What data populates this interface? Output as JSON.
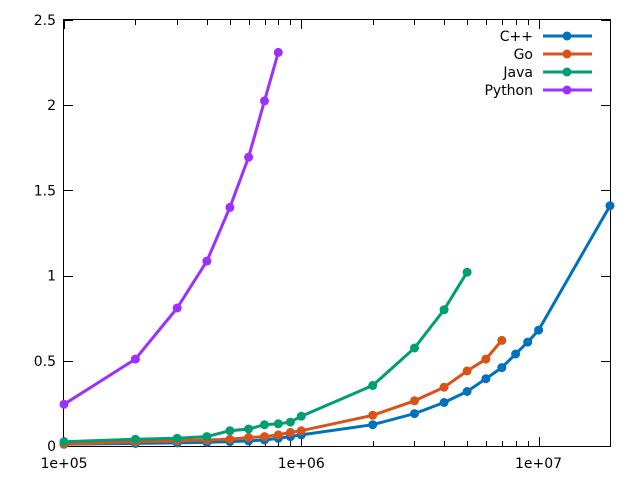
{
  "chart_data": {
    "type": "line",
    "x_scale": "log",
    "xlim": [
      100000,
      20000000
    ],
    "ylim": [
      0,
      2.5
    ],
    "grid": false,
    "legend_position": "top-right",
    "x_ticks": [
      {
        "value": 100000,
        "label": "1e+05"
      },
      {
        "value": 1000000,
        "label": "1e+06"
      },
      {
        "value": 10000000,
        "label": "1e+07"
      }
    ],
    "y_ticks": [
      {
        "value": 0,
        "label": "0"
      },
      {
        "value": 0.5,
        "label": "0.5"
      },
      {
        "value": 1,
        "label": "1"
      },
      {
        "value": 1.5,
        "label": "1.5"
      },
      {
        "value": 2,
        "label": "2"
      },
      {
        "value": 2.5,
        "label": "2.5"
      }
    ],
    "series": [
      {
        "name": "C++",
        "color": "#0072bd",
        "points": [
          [
            100000,
            0.01
          ],
          [
            200000,
            0.015
          ],
          [
            300000,
            0.018
          ],
          [
            400000,
            0.022
          ],
          [
            500000,
            0.026
          ],
          [
            600000,
            0.03
          ],
          [
            700000,
            0.035
          ],
          [
            800000,
            0.045
          ],
          [
            900000,
            0.055
          ],
          [
            1000000,
            0.065
          ],
          [
            2000000,
            0.125
          ],
          [
            3000000,
            0.19
          ],
          [
            4000000,
            0.255
          ],
          [
            5000000,
            0.32
          ],
          [
            6000000,
            0.395
          ],
          [
            7000000,
            0.46
          ],
          [
            8000000,
            0.54
          ],
          [
            9000000,
            0.61
          ],
          [
            10000000,
            0.68
          ],
          [
            20000000,
            1.41
          ]
        ]
      },
      {
        "name": "Go",
        "color": "#d95319",
        "points": [
          [
            100000,
            0.01
          ],
          [
            200000,
            0.025
          ],
          [
            300000,
            0.03
          ],
          [
            400000,
            0.035
          ],
          [
            500000,
            0.04
          ],
          [
            600000,
            0.05
          ],
          [
            700000,
            0.055
          ],
          [
            800000,
            0.065
          ],
          [
            900000,
            0.08
          ],
          [
            1000000,
            0.09
          ],
          [
            2000000,
            0.18
          ],
          [
            3000000,
            0.265
          ],
          [
            4000000,
            0.345
          ],
          [
            5000000,
            0.44
          ],
          [
            6000000,
            0.51
          ],
          [
            7000000,
            0.62
          ]
        ]
      },
      {
        "name": "Java",
        "color": "#009e73",
        "points": [
          [
            100000,
            0.025
          ],
          [
            200000,
            0.04
          ],
          [
            300000,
            0.045
          ],
          [
            400000,
            0.055
          ],
          [
            500000,
            0.09
          ],
          [
            600000,
            0.1
          ],
          [
            700000,
            0.125
          ],
          [
            800000,
            0.13
          ],
          [
            900000,
            0.14
          ],
          [
            1000000,
            0.175
          ],
          [
            2000000,
            0.355
          ],
          [
            3000000,
            0.575
          ],
          [
            4000000,
            0.8
          ],
          [
            5000000,
            1.02
          ]
        ]
      },
      {
        "name": "Python",
        "color": "#9b30ff",
        "points": [
          [
            100000,
            0.245
          ],
          [
            200000,
            0.51
          ],
          [
            300000,
            0.81
          ],
          [
            400000,
            1.085
          ],
          [
            500000,
            1.4
          ],
          [
            600000,
            1.695
          ],
          [
            700000,
            2.025
          ],
          [
            800000,
            2.31
          ]
        ]
      }
    ]
  }
}
